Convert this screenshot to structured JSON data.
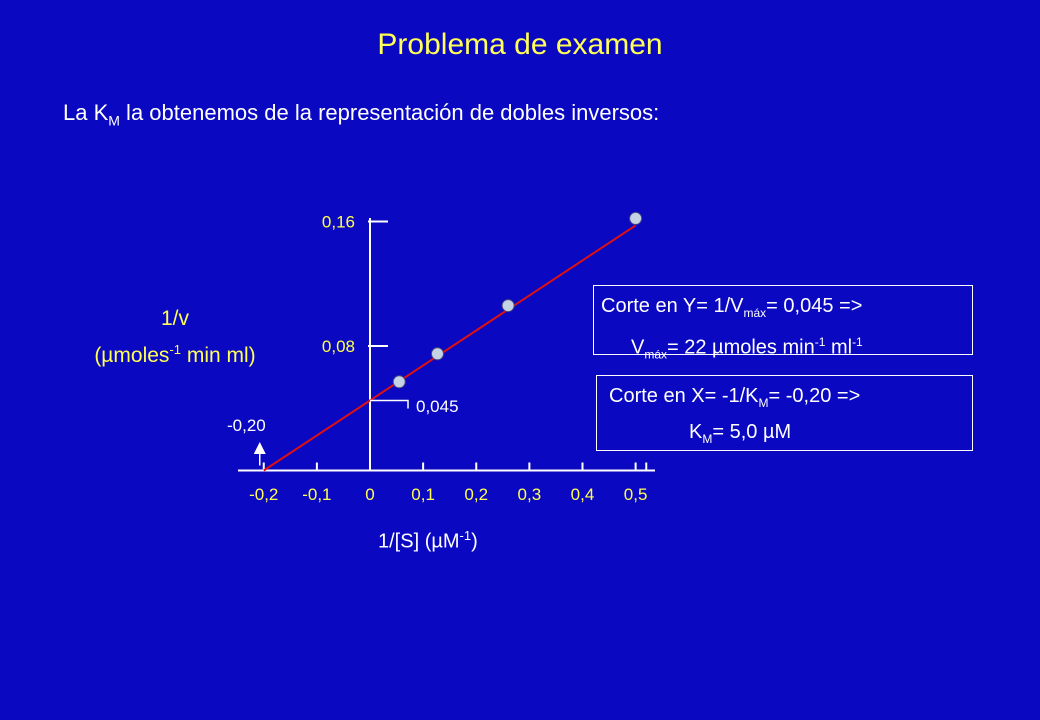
{
  "title": "Problema de examen",
  "subtitle": {
    "prefix": "La K",
    "sub": "M",
    "suffix": " la obtenemos de la representación de dobles inversos:"
  },
  "chart_data": {
    "type": "scatter",
    "xlabel_main": "1/[S] (µM",
    "xlabel_sup": "-1",
    "xlabel_end": ")",
    "ylabel_line1": "1/v",
    "ylabel_line2_a": "(µmoles",
    "ylabel_line2_sup": "-1",
    "ylabel_line2_b": " min ml)",
    "x_ticks": [
      -0.2,
      -0.1,
      0,
      0.1,
      0.2,
      0.3,
      0.4,
      0.5
    ],
    "x_tick_labels": [
      "-0,2",
      "-0,1",
      "0",
      "0,1",
      "0,2",
      "0,3",
      "0,4",
      "0,5"
    ],
    "y_ticks": [
      0.08,
      0.16
    ],
    "y_tick_labels": [
      "0,08",
      "0,16"
    ],
    "xlim": [
      -0.25,
      0.52
    ],
    "ylim": [
      0,
      0.175
    ],
    "points": [
      {
        "x": 0.055,
        "y": 0.057
      },
      {
        "x": 0.127,
        "y": 0.075
      },
      {
        "x": 0.26,
        "y": 0.106
      },
      {
        "x": 0.5,
        "y": 0.162
      }
    ],
    "fit_line": {
      "x0": -0.2,
      "x1": 0.5,
      "intercept": 0.045,
      "slope": 0.225
    },
    "annotations": {
      "y_intercept_label": "0,045",
      "x_intercept_label": "-0,20"
    },
    "colors": {
      "line": "#E01010",
      "point": "#C4D3E4",
      "axis": "#ffffff",
      "tick_label": "#FFFF55"
    }
  },
  "box_y": {
    "l1_a": "Corte en Y= 1/V",
    "l1_sub": "máx",
    "l1_b": "= 0,045  =>",
    "l2_a": "V",
    "l2_sub": "máx",
    "l2_b": "= 22 µmoles min",
    "l2_sup1": "-1",
    "l2_c": " ml",
    "l2_sup2": "-1"
  },
  "box_x": {
    "l1_a": "Corte en X= -1/K",
    "l1_sub": "M",
    "l1_b": "= -0,20  =>",
    "l2_a": "K",
    "l2_sub": "M",
    "l2_b": "= 5,0 µM"
  }
}
